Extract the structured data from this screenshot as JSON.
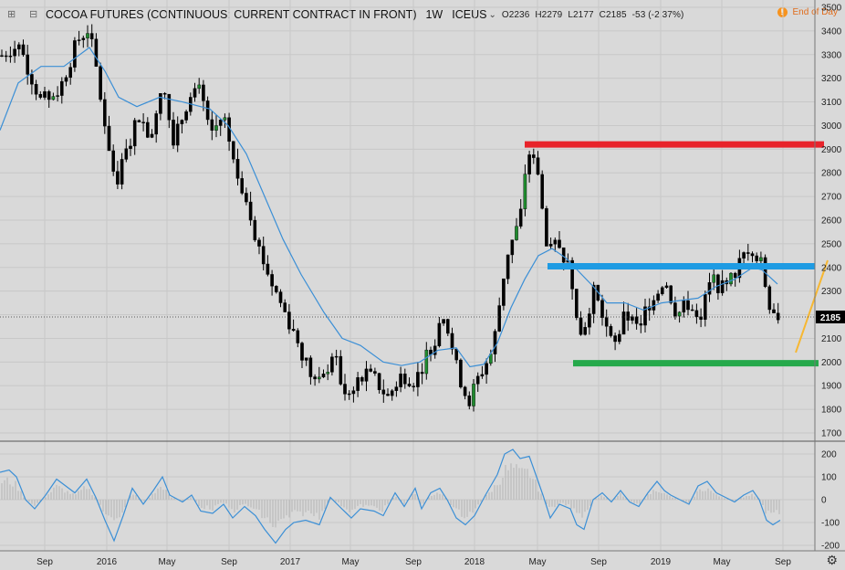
{
  "header": {
    "title": "COCOA FUTURES (CONTINUOUS: CURRENT CONTRACT IN FRONT)",
    "interval": "1W",
    "exchange": "ICEUS",
    "open": "O2236",
    "high": "H2279",
    "low": "L2177",
    "close": "C2185",
    "change": "-53 (-2.37%)",
    "status": "End of Day",
    "status_color": "#f7931e"
  },
  "chart_data": [
    {
      "type": "candlestick",
      "instrument": "COCOA FUTURES (CONTINUOUS: CURRENT CONTRACT IN FRONT)",
      "interval": "1W",
      "ylim": [
        1700,
        3500
      ],
      "y_ticks": [
        3500,
        3400,
        3300,
        3200,
        3100,
        3000,
        2900,
        2800,
        2700,
        2600,
        2500,
        2400,
        2300,
        2200,
        2100,
        2000,
        1900,
        1800,
        1700
      ],
      "last_price": 2185,
      "last_price_color": "#000000",
      "x_ticks": [
        "Sep",
        "2016",
        "May",
        "Sep",
        "2017",
        "May",
        "Sep",
        "2018",
        "May",
        "Sep",
        "2019",
        "May",
        "Sep"
      ],
      "x_tick_pos": [
        49,
        117,
        183,
        251,
        318,
        384,
        453,
        520,
        589,
        656,
        724,
        791,
        858
      ],
      "price_anchors": [
        [
          0,
          3290
        ],
        [
          20,
          3350
        ],
        [
          45,
          3100
        ],
        [
          65,
          3150
        ],
        [
          85,
          3360
        ],
        [
          97,
          3410
        ],
        [
          105,
          3250
        ],
        [
          115,
          3000
        ],
        [
          127,
          2760
        ],
        [
          140,
          2900
        ],
        [
          152,
          3050
        ],
        [
          165,
          2950
        ],
        [
          178,
          3200
        ],
        [
          190,
          2920
        ],
        [
          205,
          3100
        ],
        [
          220,
          3150
        ],
        [
          230,
          2950
        ],
        [
          245,
          3050
        ],
        [
          258,
          2800
        ],
        [
          272,
          2680
        ],
        [
          282,
          2500
        ],
        [
          296,
          2350
        ],
        [
          310,
          2230
        ],
        [
          325,
          2100
        ],
        [
          340,
          1950
        ],
        [
          352,
          1900
        ],
        [
          365,
          2050
        ],
        [
          378,
          1850
        ],
        [
          395,
          1950
        ],
        [
          410,
          1930
        ],
        [
          425,
          1850
        ],
        [
          440,
          1950
        ],
        [
          455,
          1920
        ],
        [
          470,
          2050
        ],
        [
          488,
          2180
        ],
        [
          500,
          1980
        ],
        [
          513,
          1830
        ],
        [
          525,
          1940
        ],
        [
          540,
          2050
        ],
        [
          555,
          2450
        ],
        [
          570,
          2600
        ],
        [
          578,
          2900
        ],
        [
          590,
          2800
        ],
        [
          600,
          2450
        ],
        [
          612,
          2500
        ],
        [
          625,
          2380
        ],
        [
          637,
          2100
        ],
        [
          650,
          2300
        ],
        [
          662,
          2180
        ],
        [
          672,
          2050
        ],
        [
          685,
          2200
        ],
        [
          700,
          2150
        ],
        [
          715,
          2280
        ],
        [
          728,
          2350
        ],
        [
          742,
          2200
        ],
        [
          755,
          2250
        ],
        [
          768,
          2200
        ],
        [
          780,
          2350
        ],
        [
          795,
          2300
        ],
        [
          808,
          2400
        ],
        [
          822,
          2500
        ],
        [
          833,
          2430
        ],
        [
          843,
          2250
        ],
        [
          855,
          2185
        ]
      ],
      "ma_anchors": [
        [
          0,
          2980
        ],
        [
          20,
          3180
        ],
        [
          45,
          3250
        ],
        [
          70,
          3250
        ],
        [
          98,
          3330
        ],
        [
          115,
          3230
        ],
        [
          130,
          3120
        ],
        [
          150,
          3080
        ],
        [
          175,
          3120
        ],
        [
          200,
          3100
        ],
        [
          230,
          3070
        ],
        [
          250,
          3000
        ],
        [
          270,
          2880
        ],
        [
          290,
          2700
        ],
        [
          310,
          2520
        ],
        [
          330,
          2370
        ],
        [
          355,
          2210
        ],
        [
          375,
          2100
        ],
        [
          395,
          2070
        ],
        [
          420,
          2000
        ],
        [
          440,
          1985
        ],
        [
          460,
          2000
        ],
        [
          480,
          2050
        ],
        [
          500,
          2060
        ],
        [
          515,
          1980
        ],
        [
          530,
          1990
        ],
        [
          545,
          2080
        ],
        [
          560,
          2230
        ],
        [
          575,
          2350
        ],
        [
          590,
          2450
        ],
        [
          605,
          2480
        ],
        [
          620,
          2440
        ],
        [
          635,
          2380
        ],
        [
          650,
          2320
        ],
        [
          665,
          2250
        ],
        [
          685,
          2250
        ],
        [
          705,
          2220
        ],
        [
          725,
          2250
        ],
        [
          745,
          2260
        ],
        [
          765,
          2270
        ],
        [
          785,
          2320
        ],
        [
          805,
          2350
        ],
        [
          825,
          2400
        ],
        [
          835,
          2390
        ],
        [
          852,
          2330
        ]
      ],
      "horizontal_levels": [
        {
          "value": 2920,
          "color": "#e8232a",
          "x_from": 575,
          "x_to": 903
        },
        {
          "value": 2405,
          "color": "#1e9be3",
          "x_from": 600,
          "x_to": 893
        },
        {
          "value": 1995,
          "color": "#26a94b",
          "x_from": 628,
          "x_to": 897
        }
      ],
      "trend_line": {
        "color": "#f7b731",
        "from": [
          872,
          2040
        ],
        "to": [
          907,
          2430
        ]
      },
      "grid": true,
      "candle_up_color": "#1f8a2e",
      "candle_down_color": "#000000",
      "ma_color": "#3b8fd6"
    },
    {
      "type": "line+histogram",
      "ylim": [
        -230,
        230
      ],
      "y_ticks": [
        200,
        100,
        0,
        -100,
        -200
      ],
      "osc_anchors": [
        [
          0,
          120
        ],
        [
          10,
          130
        ],
        [
          18,
          100
        ],
        [
          28,
          0
        ],
        [
          38,
          -40
        ],
        [
          50,
          20
        ],
        [
          62,
          90
        ],
        [
          72,
          60
        ],
        [
          82,
          30
        ],
        [
          95,
          90
        ],
        [
          105,
          10
        ],
        [
          115,
          -90
        ],
        [
          125,
          -180
        ],
        [
          135,
          -70
        ],
        [
          145,
          50
        ],
        [
          157,
          -20
        ],
        [
          168,
          40
        ],
        [
          178,
          100
        ],
        [
          186,
          20
        ],
        [
          200,
          -10
        ],
        [
          210,
          20
        ],
        [
          220,
          -50
        ],
        [
          233,
          -60
        ],
        [
          245,
          -20
        ],
        [
          255,
          -80
        ],
        [
          268,
          -30
        ],
        [
          280,
          -70
        ],
        [
          290,
          -130
        ],
        [
          302,
          -190
        ],
        [
          313,
          -130
        ],
        [
          322,
          -100
        ],
        [
          335,
          -90
        ],
        [
          350,
          -110
        ],
        [
          362,
          10
        ],
        [
          372,
          -30
        ],
        [
          385,
          -80
        ],
        [
          395,
          -40
        ],
        [
          410,
          -50
        ],
        [
          420,
          -70
        ],
        [
          433,
          30
        ],
        [
          443,
          -30
        ],
        [
          455,
          50
        ],
        [
          462,
          -40
        ],
        [
          472,
          30
        ],
        [
          482,
          50
        ],
        [
          490,
          0
        ],
        [
          500,
          -80
        ],
        [
          510,
          -110
        ],
        [
          520,
          -70
        ],
        [
          532,
          20
        ],
        [
          545,
          110
        ],
        [
          553,
          200
        ],
        [
          562,
          220
        ],
        [
          570,
          180
        ],
        [
          580,
          190
        ],
        [
          588,
          100
        ],
        [
          595,
          20
        ],
        [
          603,
          -80
        ],
        [
          613,
          -20
        ],
        [
          625,
          -40
        ],
        [
          632,
          -110
        ],
        [
          640,
          -130
        ],
        [
          650,
          0
        ],
        [
          660,
          30
        ],
        [
          670,
          -10
        ],
        [
          680,
          40
        ],
        [
          690,
          -10
        ],
        [
          700,
          -30
        ],
        [
          710,
          30
        ],
        [
          720,
          80
        ],
        [
          728,
          40
        ],
        [
          735,
          20
        ],
        [
          745,
          0
        ],
        [
          755,
          -20
        ],
        [
          765,
          60
        ],
        [
          775,
          80
        ],
        [
          785,
          30
        ],
        [
          795,
          10
        ],
        [
          805,
          -10
        ],
        [
          815,
          20
        ],
        [
          825,
          40
        ],
        [
          832,
          0
        ],
        [
          840,
          -90
        ],
        [
          847,
          -110
        ],
        [
          855,
          -90
        ]
      ],
      "line_color": "#3b8fd6",
      "histogram_color": "#b3b3b3"
    }
  ]
}
